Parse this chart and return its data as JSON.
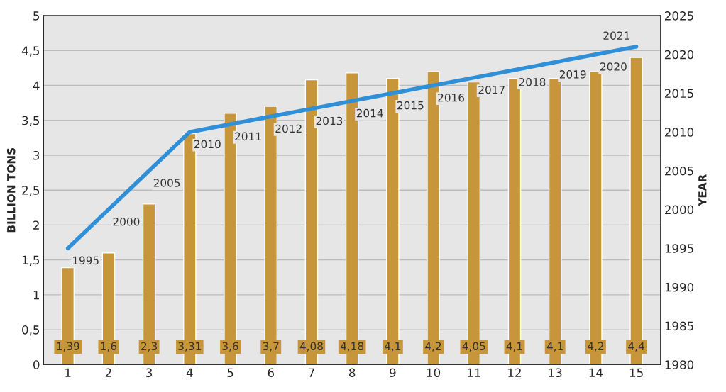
{
  "chart_data": {
    "type": "bar",
    "categories": [
      "1",
      "2",
      "3",
      "4",
      "5",
      "6",
      "7",
      "8",
      "9",
      "10",
      "11",
      "12",
      "13",
      "14",
      "15"
    ],
    "ylabel": "BILLION TONS",
    "y2label": "YEAR",
    "series": [
      {
        "color": "#c8963a",
        "values": [
          1.39,
          1.6,
          2.3,
          3.31,
          3.6,
          3.7,
          4.08,
          4.18,
          4.1,
          4.2,
          4.05,
          4.1,
          4.1,
          4.2,
          4.4
        ],
        "value_labels": [
          "1,39",
          "1,6",
          "2,3",
          "3,31",
          "3,6",
          "3,7",
          "4,08",
          "4,18",
          "4,1",
          "4,2",
          "4,05",
          "4,1",
          "4,1",
          "4,2",
          "4,4"
        ]
      },
      {
        "type": "line",
        "axis": "y2",
        "color": "#2f8fd8",
        "values": [
          1995,
          2000,
          2005,
          2010,
          2011,
          2012,
          2013,
          2014,
          2015,
          2016,
          2017,
          2018,
          2019,
          2020,
          2021
        ],
        "value_labels": [
          "1995",
          "2000",
          "2005",
          "2010",
          "2011",
          "2012",
          "2013",
          "2014",
          "2015",
          "2016",
          "2017",
          "2018",
          "2019",
          "2020",
          "2021"
        ]
      }
    ],
    "ylim": [
      0,
      5
    ],
    "yticks": [
      0,
      {
        "value": 0.5,
        "label": "0,5"
      },
      1,
      {
        "value": 1.5,
        "label": "1,5"
      },
      2,
      {
        "value": 2.5,
        "label": "2,5"
      },
      3,
      {
        "value": 3.5,
        "label": "3,5"
      },
      4,
      {
        "value": 4.5,
        "label": "4,5"
      },
      5
    ],
    "y2lim": [
      1980,
      2025
    ],
    "y2ticks": [
      1980,
      1985,
      1990,
      1995,
      2000,
      2005,
      2010,
      2015,
      2020,
      2025
    ],
    "grid": "y",
    "marker": "none",
    "line_style": "solid",
    "legend": false
  }
}
